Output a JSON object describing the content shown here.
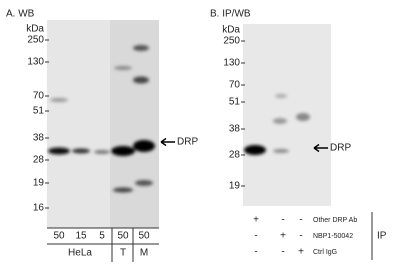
{
  "panel_a": {
    "title": "A. WB",
    "mw_unit": "kDa",
    "mw_markers": [
      "250",
      "130",
      "70",
      "51",
      "38",
      "28",
      "19",
      "16"
    ],
    "lanes": [
      "50",
      "15",
      "5",
      "50",
      "50"
    ],
    "groups": [
      "HeLa",
      "T",
      "M"
    ],
    "target": "DRP"
  },
  "panel_b": {
    "title": "B. IP/WB",
    "mw_unit": "kDa",
    "mw_markers": [
      "250",
      "130",
      "70",
      "51",
      "38",
      "28",
      "19"
    ],
    "target": "DRP",
    "rows": [
      {
        "label": "Other DRP Ab",
        "signs": [
          "+",
          "-",
          "-"
        ]
      },
      {
        "label": "NBP1-50042",
        "signs": [
          "-",
          "+",
          "-"
        ]
      },
      {
        "label": "Ctrl IgG",
        "signs": [
          "-",
          "-",
          "+"
        ]
      }
    ],
    "ip_label": "IP"
  }
}
